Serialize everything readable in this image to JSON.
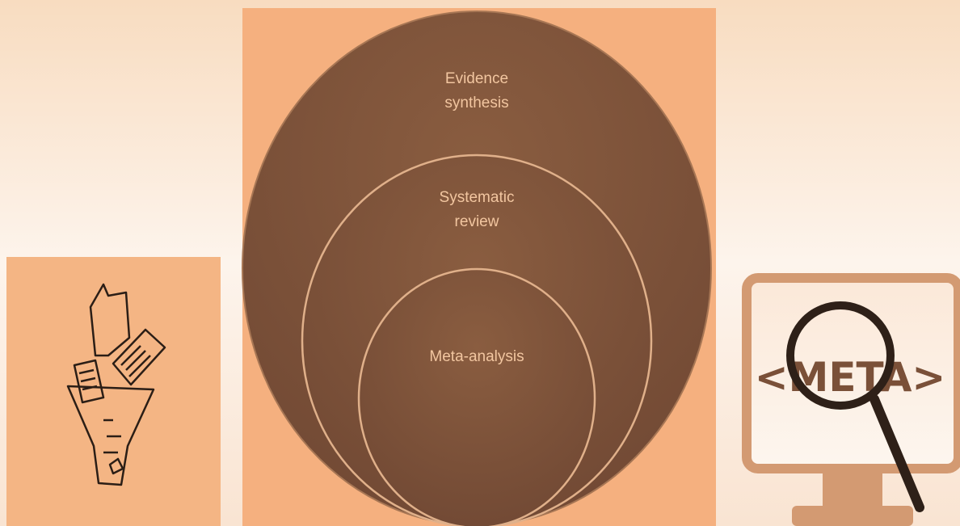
{
  "diagram": {
    "circles": [
      {
        "label": "Evidence synthesis"
      },
      {
        "label": "Systematic review"
      },
      {
        "label": "Meta-analysis"
      }
    ],
    "icon_text": "<META>"
  }
}
